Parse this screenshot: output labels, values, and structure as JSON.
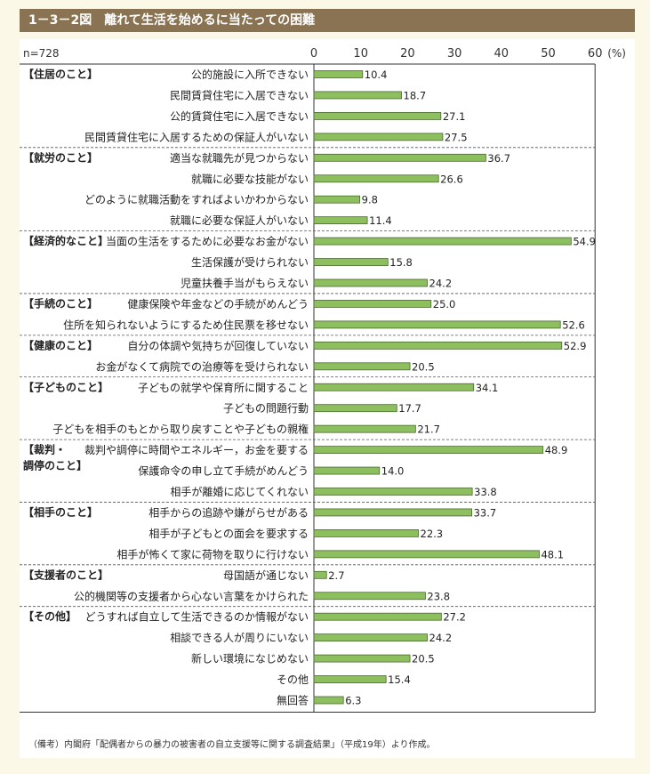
{
  "title": "1－3－2図　離れて生活を始めるに当たっての困難",
  "note": "（備考）内閣府「配偶者からの暴力の被害者の自立支援等に関する調査結果」（平成19年）より作成。",
  "colors": {
    "bar": "#8dbf5e",
    "bar_border": "#4a6a30",
    "title_bg": "#8a7352"
  },
  "chart_data": {
    "type": "bar",
    "orientation": "horizontal",
    "n_label": "n=728",
    "unit": "(%)",
    "xlim": [
      0,
      60
    ],
    "ticks": [
      "0",
      "10",
      "20",
      "30",
      "40",
      "50",
      "60"
    ],
    "groups": [
      {
        "label": "【住居のこと】",
        "items": [
          {
            "label": "公的施設に入所できない",
            "value": 10.4
          },
          {
            "label": "民間賃貸住宅に入居できない",
            "value": 18.7
          },
          {
            "label": "公的賃貸住宅に入居できない",
            "value": 27.1
          },
          {
            "label": "民間賃貸住宅に入居するための保証人がいない",
            "value": 27.5
          }
        ]
      },
      {
        "label": "【就労のこと】",
        "items": [
          {
            "label": "適当な就職先が見つからない",
            "value": 36.7
          },
          {
            "label": "就職に必要な技能がない",
            "value": 26.6
          },
          {
            "label": "どのように就職活動をすればよいかわからない",
            "value": 9.8
          },
          {
            "label": "就職に必要な保証人がいない",
            "value": 11.4
          }
        ]
      },
      {
        "label": "【経済的なこと】",
        "items": [
          {
            "label": "当面の生活をするために必要なお金がない",
            "value": 54.9
          },
          {
            "label": "生活保護が受けられない",
            "value": 15.8
          },
          {
            "label": "児童扶養手当がもらえない",
            "value": 24.2
          }
        ]
      },
      {
        "label": "【手続のこと】",
        "items": [
          {
            "label": "健康保険や年金などの手続がめんどう",
            "value": 25.0
          },
          {
            "label": "住所を知られないようにするため住民票を移せない",
            "value": 52.6
          }
        ]
      },
      {
        "label": "【健康のこと】",
        "items": [
          {
            "label": "自分の体調や気持ちが回復していない",
            "value": 52.9
          },
          {
            "label": "お金がなくて病院での治療等を受けられない",
            "value": 20.5
          }
        ]
      },
      {
        "label": "【子どものこと】",
        "items": [
          {
            "label": "子どもの就学や保育所に関すること",
            "value": 34.1
          },
          {
            "label": "子どもの問題行動",
            "value": 17.7
          },
          {
            "label": "子どもを相手のもとから取り戻すことや子どもの親権",
            "value": 21.7
          }
        ]
      },
      {
        "label": "【裁判・\n調停のこと】",
        "items": [
          {
            "label": "裁判や調停に時間やエネルギー，お金を要する",
            "value": 48.9
          },
          {
            "label": "保護命令の申し立て手続がめんどう",
            "value": 14.0
          },
          {
            "label": "相手が離婚に応じてくれない",
            "value": 33.8
          }
        ]
      },
      {
        "label": "【相手のこと】",
        "items": [
          {
            "label": "相手からの追跡や嫌がらせがある",
            "value": 33.7
          },
          {
            "label": "相手が子どもとの面会を要求する",
            "value": 22.3
          },
          {
            "label": "相手が怖くて家に荷物を取りに行けない",
            "value": 48.1
          }
        ]
      },
      {
        "label": "【支援者のこと】",
        "items": [
          {
            "label": "母国語が通じない",
            "value": 2.7
          },
          {
            "label": "公的機関等の支援者から心ない言葉をかけられた",
            "value": 23.8
          }
        ]
      },
      {
        "label": "【その他】",
        "items": [
          {
            "label": "どうすれば自立して生活できるのか情報がない",
            "value": 27.2
          },
          {
            "label": "相談できる人が周りにいない",
            "value": 24.2
          },
          {
            "label": "新しい環境になじめない",
            "value": 20.5
          },
          {
            "label": "その他",
            "value": 15.4
          },
          {
            "label": "無回答",
            "value": 6.3
          }
        ]
      }
    ]
  }
}
